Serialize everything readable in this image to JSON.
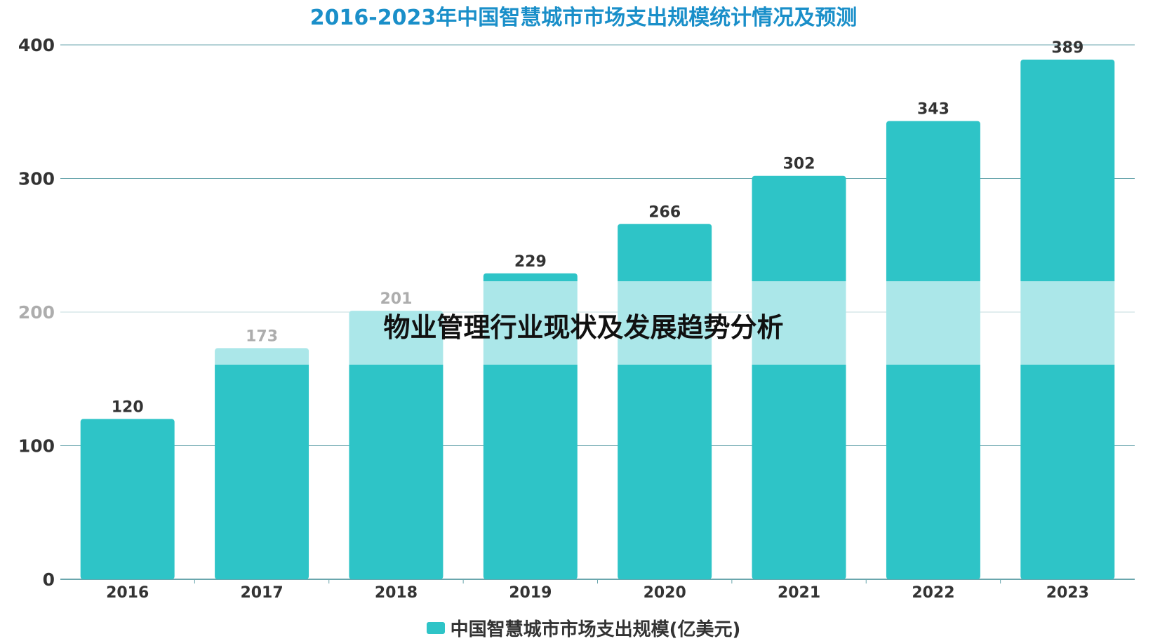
{
  "chart_data": {
    "type": "bar",
    "title": "2016-2023年中国智慧城市市场支出规模统计情况及预测",
    "categories": [
      "2016",
      "2017",
      "2018",
      "2019",
      "2020",
      "2021",
      "2022",
      "2023"
    ],
    "series": [
      {
        "name": "中国智慧城市市场支出规模(亿美元)",
        "values": [
          120,
          173,
          201,
          229,
          266,
          302,
          343,
          389
        ]
      }
    ],
    "ylim": [
      0,
      400
    ],
    "yticks": [
      0,
      100,
      200,
      300,
      400
    ],
    "grid": true,
    "legend": "bottom-center",
    "xlabel": "",
    "ylabel": ""
  },
  "colors": {
    "bar": "#2ec4c7",
    "title": "#1a8fc9",
    "grid": "#6aa6ad",
    "text": "#333333"
  },
  "watermark": "物业管理行业现状及发展趋势分析"
}
